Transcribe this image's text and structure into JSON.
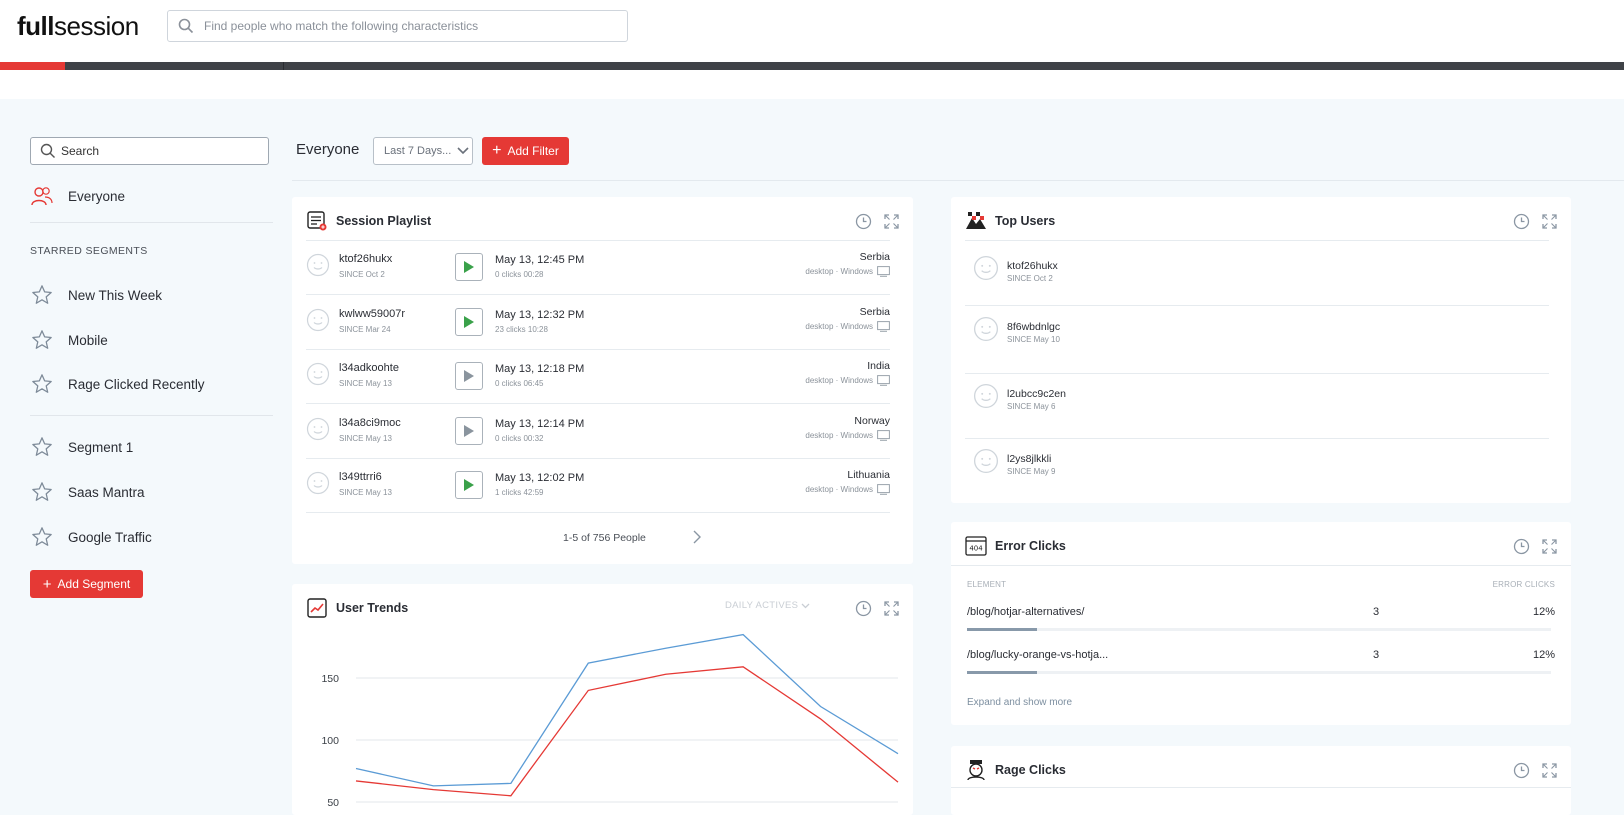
{
  "header": {
    "logo": {
      "bold": "full",
      "rest": "session"
    },
    "search_placeholder": "Find people who match the following characteristics",
    "progress_percent": 4
  },
  "sidebar": {
    "search_placeholder": "Search",
    "everyone_label": "Everyone",
    "starred_title": "STARRED SEGMENTS",
    "starred": [
      {
        "label": "New This Week"
      },
      {
        "label": "Mobile"
      },
      {
        "label": "Rage Clicked Recently"
      }
    ],
    "segments": [
      {
        "label": "Segment 1"
      },
      {
        "label": "Saas Mantra"
      },
      {
        "label": "Google Traffic"
      }
    ],
    "add_segment_label": "Add Segment"
  },
  "toolbar": {
    "segment": "Everyone",
    "range": "Last 7 Days...",
    "add_filter": "Add Filter"
  },
  "session_playlist": {
    "title": "Session Playlist",
    "rows": [
      {
        "user": "ktof26hukx",
        "since": "SINCE Oct 2",
        "date": "May 13, 12:45 PM",
        "clicks": "0 clicks  00:28",
        "country": "Serbia",
        "device": "desktop · Windows",
        "watched": false
      },
      {
        "user": "kwlww59007r",
        "since": "SINCE Mar 24",
        "date": "May 13, 12:32 PM",
        "clicks": "23 clicks  10:28",
        "country": "Serbia",
        "device": "desktop · Windows",
        "watched": false
      },
      {
        "user": "l34adkoohte",
        "since": "SINCE May 13",
        "date": "May 13, 12:18 PM",
        "clicks": "0 clicks  06:45",
        "country": "India",
        "device": "desktop · Windows",
        "watched": true
      },
      {
        "user": "l34a8ci9moc",
        "since": "SINCE May 13",
        "date": "May 13, 12:14 PM",
        "clicks": "0 clicks  00:32",
        "country": "Norway",
        "device": "desktop · Windows",
        "watched": true
      },
      {
        "user": "l349ttrri6",
        "since": "SINCE May 13",
        "date": "May 13, 12:02 PM",
        "clicks": "1 clicks  42:59",
        "country": "Lithuania",
        "device": "desktop · Windows",
        "watched": false
      }
    ],
    "pager": "1-5 of 756 People"
  },
  "user_trends": {
    "title": "User Trends",
    "metric": "DAILY ACTIVES"
  },
  "chart_data": {
    "type": "line",
    "title": "",
    "xlabel": "",
    "ylabel": "",
    "x": [
      1,
      2,
      3,
      4,
      5,
      6,
      7,
      8
    ],
    "yticks": [
      50,
      100,
      150
    ],
    "ylim": [
      50,
      185
    ],
    "series": [
      {
        "values": [
          77,
          63,
          65,
          162,
          174,
          185,
          127,
          89
        ],
        "color": "#5b9bd5"
      },
      {
        "values": [
          67,
          60,
          55,
          140,
          153,
          159,
          117,
          66
        ],
        "color": "#e53935"
      }
    ],
    "grid": true
  },
  "top_users": {
    "title": "Top Users",
    "rows": [
      {
        "user": "ktof26hukx",
        "since": "SINCE Oct 2"
      },
      {
        "user": "8f6wbdnlgc",
        "since": "SINCE May 10"
      },
      {
        "user": "l2ubcc9c2en",
        "since": "SINCE May 6"
      },
      {
        "user": "l2ys8jlkkli",
        "since": "SINCE May 9"
      }
    ]
  },
  "error_clicks": {
    "title": "Error Clicks",
    "col_element": "ELEMENT",
    "col_error": "ERROR CLICKS",
    "rows": [
      {
        "element": "/blog/hotjar-alternatives/",
        "count": "3",
        "percent": "12%",
        "fill": 0.12
      },
      {
        "element": "/blog/lucky-orange-vs-hotja...",
        "count": "3",
        "percent": "12%",
        "fill": 0.12
      }
    ],
    "more": "Expand and show more"
  },
  "rage_clicks": {
    "title": "Rage Clicks"
  },
  "colors": {
    "accent": "#e53935",
    "play": "#3aa14a",
    "muted_play": "#8a949e"
  }
}
